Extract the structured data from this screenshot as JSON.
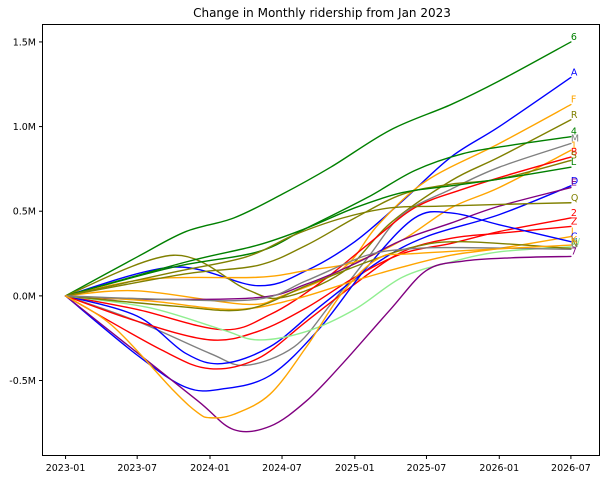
{
  "chart_data": {
    "type": "line",
    "title": "Change in Monthly ridership from Jan 2023",
    "xlabel": "",
    "ylabel": "",
    "grid": false,
    "x_ticks": [
      "2023-01",
      "2023-07",
      "2024-01",
      "2024-07",
      "2025-01",
      "2025-07",
      "2026-01",
      "2026-07"
    ],
    "y_ticks": [
      {
        "value": 1500000,
        "label": "1.5M"
      },
      {
        "value": 1000000,
        "label": "1.0M"
      },
      {
        "value": 500000,
        "label": "0.5M"
      },
      {
        "value": 0,
        "label": "0.0M"
      },
      {
        "value": -500000,
        "label": "-0.5M"
      }
    ],
    "xlim": [
      "2022-11-05",
      "2026-09-10"
    ],
    "ylim": [
      -940000,
      1600000
    ],
    "series": [
      {
        "name": "6",
        "color": "#008000",
        "points": [
          [
            "2023-01",
            0
          ],
          [
            "2023-07",
            230000
          ],
          [
            "2023-11",
            380000
          ],
          [
            "2024-03",
            460000
          ],
          [
            "2024-07",
            600000
          ],
          [
            "2024-11",
            760000
          ],
          [
            "2025-04",
            980000
          ],
          [
            "2025-09",
            1130000
          ],
          [
            "2026-01",
            1270000
          ],
          [
            "2026-07",
            1500000
          ]
        ]
      },
      {
        "name": "A",
        "color": "#0000ff",
        "points": [
          [
            "2023-01",
            0
          ],
          [
            "2023-10",
            170000
          ],
          [
            "2024-05",
            60000
          ],
          [
            "2024-09",
            150000
          ],
          [
            "2025-01",
            320000
          ],
          [
            "2025-05",
            560000
          ],
          [
            "2025-09",
            820000
          ],
          [
            "2026-01",
            1000000
          ],
          [
            "2026-07",
            1290000
          ]
        ]
      },
      {
        "name": "F",
        "color": "#ffa500",
        "points": [
          [
            "2023-01",
            0
          ],
          [
            "2023-07",
            30000
          ],
          [
            "2024-04",
            -50000
          ],
          [
            "2024-07",
            0
          ],
          [
            "2024-12",
            160000
          ],
          [
            "2025-03",
            420000
          ],
          [
            "2025-07",
            680000
          ],
          [
            "2026-01",
            900000
          ],
          [
            "2026-07",
            1130000
          ]
        ]
      },
      {
        "name": "R",
        "color": "#808000",
        "points": [
          [
            "2023-01",
            0
          ],
          [
            "2023-10",
            240000
          ],
          [
            "2024-04",
            40000
          ],
          [
            "2024-07",
            -10000
          ],
          [
            "2024-12",
            140000
          ],
          [
            "2025-04",
            430000
          ],
          [
            "2025-09",
            680000
          ],
          [
            "2026-01",
            820000
          ],
          [
            "2026-07",
            1040000
          ]
        ]
      },
      {
        "name": "4",
        "color": "#008000",
        "points": [
          [
            "2023-01",
            0
          ],
          [
            "2023-10",
            170000
          ],
          [
            "2024-05",
            260000
          ],
          [
            "2024-09",
            400000
          ],
          [
            "2025-02",
            580000
          ],
          [
            "2025-06",
            740000
          ],
          [
            "2025-10",
            840000
          ],
          [
            "2026-02",
            890000
          ],
          [
            "2026-07",
            940000
          ]
        ]
      },
      {
        "name": "M",
        "color": "#808080",
        "points": [
          [
            "2023-01",
            0
          ],
          [
            "2023-07",
            -150000
          ],
          [
            "2024-01",
            -340000
          ],
          [
            "2024-04",
            -410000
          ],
          [
            "2024-08",
            -300000
          ],
          [
            "2024-11",
            -50000
          ],
          [
            "2025-02",
            220000
          ],
          [
            "2025-05",
            480000
          ],
          [
            "2025-09",
            630000
          ],
          [
            "2026-01",
            760000
          ],
          [
            "2026-07",
            900000
          ]
        ]
      },
      {
        "name": "1",
        "color": "#ffa500",
        "points": [
          [
            "2023-01",
            0
          ],
          [
            "2023-08",
            100000
          ],
          [
            "2024-05",
            110000
          ],
          [
            "2024-09",
            150000
          ],
          [
            "2025-01",
            200000
          ],
          [
            "2025-05",
            330000
          ],
          [
            "2025-09",
            520000
          ],
          [
            "2026-01",
            640000
          ],
          [
            "2026-07",
            860000
          ]
        ]
      },
      {
        "name": "B",
        "color": "#ff0000",
        "points": [
          [
            "2023-01",
            0
          ],
          [
            "2023-07",
            -80000
          ],
          [
            "2024-02",
            -200000
          ],
          [
            "2024-06",
            -110000
          ],
          [
            "2024-10",
            70000
          ],
          [
            "2025-02",
            300000
          ],
          [
            "2025-06",
            520000
          ],
          [
            "2025-10",
            630000
          ],
          [
            "2026-02",
            720000
          ],
          [
            "2026-07",
            820000
          ]
        ]
      },
      {
        "name": "S",
        "color": "#808000",
        "points": [
          [
            "2023-01",
            0
          ],
          [
            "2023-11",
            130000
          ],
          [
            "2024-05",
            180000
          ],
          [
            "2024-09",
            300000
          ],
          [
            "2025-01",
            460000
          ],
          [
            "2025-05",
            600000
          ],
          [
            "2025-09",
            660000
          ],
          [
            "2026-01",
            690000
          ],
          [
            "2026-07",
            800000
          ]
        ]
      },
      {
        "name": "L",
        "color": "#008000",
        "points": [
          [
            "2023-01",
            0
          ],
          [
            "2023-11",
            200000
          ],
          [
            "2024-05",
            300000
          ],
          [
            "2024-09",
            400000
          ],
          [
            "2025-01",
            520000
          ],
          [
            "2025-05",
            610000
          ],
          [
            "2025-09",
            650000
          ],
          [
            "2026-01",
            690000
          ],
          [
            "2026-07",
            760000
          ]
        ]
      },
      {
        "name": "D",
        "color": "#0000ff",
        "points": [
          [
            "2023-01",
            0
          ],
          [
            "2023-07",
            -120000
          ],
          [
            "2023-11",
            -340000
          ],
          [
            "2024-02",
            -400000
          ],
          [
            "2024-06",
            -300000
          ],
          [
            "2024-10",
            -70000
          ],
          [
            "2025-03",
            200000
          ],
          [
            "2025-07",
            350000
          ],
          [
            "2026-01",
            480000
          ],
          [
            "2026-07",
            650000
          ]
        ]
      },
      {
        "name": "E",
        "color": "#800080",
        "points": [
          [
            "2023-01",
            0
          ],
          [
            "2023-07",
            -20000
          ],
          [
            "2024-05",
            -10000
          ],
          [
            "2024-09",
            70000
          ],
          [
            "2025-01",
            190000
          ],
          [
            "2025-05",
            330000
          ],
          [
            "2025-09",
            430000
          ],
          [
            "2026-01",
            530000
          ],
          [
            "2026-07",
            640000
          ]
        ]
      },
      {
        "name": "Q",
        "color": "#808000",
        "points": [
          [
            "2023-01",
            0
          ],
          [
            "2023-10",
            140000
          ],
          [
            "2024-04",
            230000
          ],
          [
            "2024-08",
            360000
          ],
          [
            "2024-12",
            460000
          ],
          [
            "2025-04",
            520000
          ],
          [
            "2025-08",
            530000
          ],
          [
            "2026-01",
            540000
          ],
          [
            "2026-07",
            550000
          ]
        ]
      },
      {
        "name": "2",
        "color": "#ff0000",
        "points": [
          [
            "2023-01",
            0
          ],
          [
            "2023-07",
            -150000
          ],
          [
            "2024-01",
            -260000
          ],
          [
            "2024-05",
            -210000
          ],
          [
            "2024-09",
            -70000
          ],
          [
            "2025-01",
            110000
          ],
          [
            "2025-05",
            250000
          ],
          [
            "2025-09",
            310000
          ],
          [
            "2026-01",
            380000
          ],
          [
            "2026-07",
            460000
          ]
        ]
      },
      {
        "name": "Z",
        "color": "#ff0000",
        "points": [
          [
            "2023-01",
            0
          ],
          [
            "2023-09",
            -320000
          ],
          [
            "2024-01",
            -430000
          ],
          [
            "2024-05",
            -370000
          ],
          [
            "2024-09",
            -150000
          ],
          [
            "2025-01",
            70000
          ],
          [
            "2025-05",
            260000
          ],
          [
            "2025-09",
            340000
          ],
          [
            "2026-01",
            370000
          ],
          [
            "2026-07",
            410000
          ]
        ]
      },
      {
        "name": "J",
        "color": "#ffa500",
        "points": [
          [
            "2023-01",
            0
          ],
          [
            "2023-08",
            -30000
          ],
          [
            "2024-03",
            -80000
          ],
          [
            "2024-08",
            -20000
          ],
          [
            "2025-01",
            90000
          ],
          [
            "2025-05",
            170000
          ],
          [
            "2025-09",
            240000
          ],
          [
            "2026-01",
            280000
          ],
          [
            "2026-07",
            350000
          ]
        ]
      },
      {
        "name": "C",
        "color": "#0000ff",
        "points": [
          [
            "2023-01",
            0
          ],
          [
            "2023-07",
            -350000
          ],
          [
            "2023-11",
            -540000
          ],
          [
            "2024-02",
            -550000
          ],
          [
            "2024-06",
            -470000
          ],
          [
            "2024-10",
            -200000
          ],
          [
            "2025-02",
            170000
          ],
          [
            "2025-06",
            460000
          ],
          [
            "2025-09",
            490000
          ],
          [
            "2026-01",
            420000
          ],
          [
            "2026-07",
            320000
          ]
        ]
      },
      {
        "name": "W",
        "color": "#90ee90",
        "points": [
          [
            "2023-01",
            0
          ],
          [
            "2023-08",
            -70000
          ],
          [
            "2024-02",
            -200000
          ],
          [
            "2024-05",
            -260000
          ],
          [
            "2024-09",
            -210000
          ],
          [
            "2025-01",
            -80000
          ],
          [
            "2025-05",
            110000
          ],
          [
            "2025-09",
            200000
          ],
          [
            "2026-01",
            260000
          ],
          [
            "2026-07",
            290000
          ]
        ]
      },
      {
        "name": "N",
        "color": "#808000",
        "points": [
          [
            "2023-01",
            0
          ],
          [
            "2023-10",
            -60000
          ],
          [
            "2024-04",
            -80000
          ],
          [
            "2024-09",
            60000
          ],
          [
            "2025-02",
            200000
          ],
          [
            "2025-06",
            290000
          ],
          [
            "2025-10",
            320000
          ],
          [
            "2026-07",
            280000
          ]
        ]
      },
      {
        "name": "G",
        "color": "#808080",
        "points": [
          [
            "2023-01",
            0
          ],
          [
            "2023-09",
            -20000
          ],
          [
            "2024-05",
            -20000
          ],
          [
            "2024-09",
            90000
          ],
          [
            "2025-02",
            240000
          ],
          [
            "2025-06",
            280000
          ],
          [
            "2025-10",
            285000
          ],
          [
            "2026-07",
            275000
          ]
        ]
      },
      {
        "name": "7",
        "color": "#800080",
        "points": [
          [
            "2023-01",
            0
          ],
          [
            "2023-06",
            -280000
          ],
          [
            "2023-12",
            -620000
          ],
          [
            "2024-03",
            -790000
          ],
          [
            "2024-06",
            -770000
          ],
          [
            "2024-09",
            -620000
          ],
          [
            "2024-12",
            -400000
          ],
          [
            "2025-04",
            -80000
          ],
          [
            "2025-07",
            150000
          ],
          [
            "2025-10",
            205000
          ],
          [
            "2026-02",
            225000
          ],
          [
            "2026-07",
            233000
          ]
        ]
      },
      {
        "name": "K",
        "color": "#ffa500",
        "points": [
          [
            "2023-01",
            0
          ],
          [
            "2023-05",
            -180000
          ],
          [
            "2023-10",
            -560000
          ],
          [
            "2023-12",
            -690000
          ],
          [
            "2024-01",
            -720000
          ],
          [
            "2024-03",
            -700000
          ],
          [
            "2024-06",
            -580000
          ],
          [
            "2024-09",
            -300000
          ],
          [
            "2024-12",
            20000
          ],
          [
            "2025-03",
            220000
          ],
          [
            "2025-06",
            250000
          ],
          [
            "2026-07",
            300000
          ]
        ]
      }
    ]
  }
}
